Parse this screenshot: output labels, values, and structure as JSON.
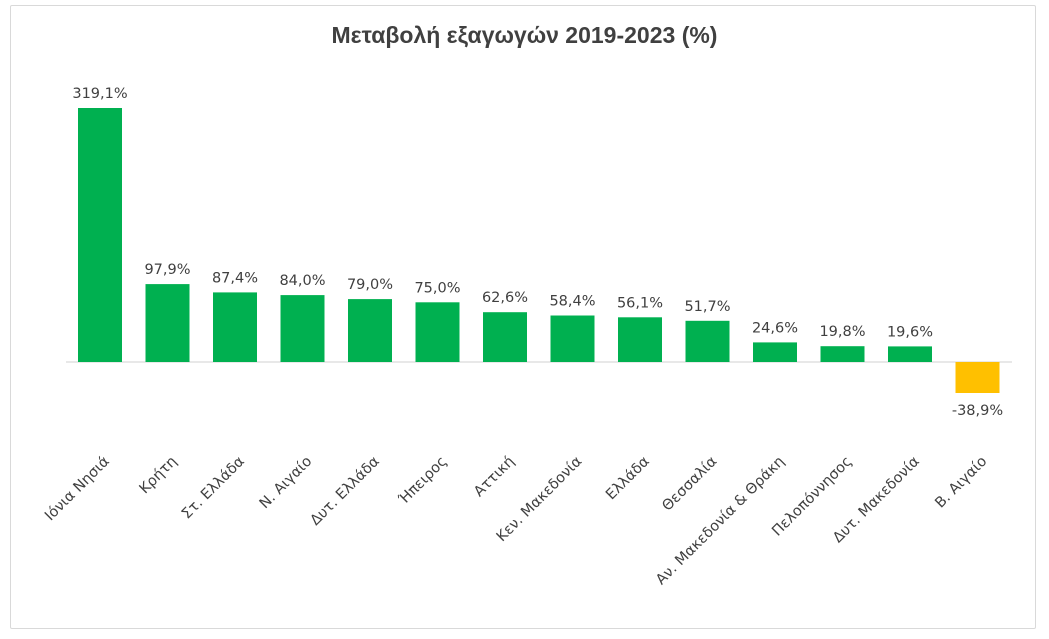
{
  "chart_data": {
    "type": "bar",
    "title": "Μεταβολή εξαγωγών 2019-2023 (%)",
    "categories": [
      "Ιόνια Νησιά",
      "Κρήτη",
      "Στ. Ελλάδα",
      "Ν. Αιγαίο",
      "Δυτ. Ελλάδα",
      "Ήπειρος",
      "Αττική",
      "Κεν. Μακεδονία",
      "Ελλάδα",
      "Θεσσαλία",
      "Αν. Μακεδονία & Θράκη",
      "Πελοπόννησος",
      "Δυτ. Μακεδονία",
      "Β. Αιγαίο"
    ],
    "values": [
      319.1,
      97.9,
      87.4,
      84.0,
      79.0,
      75.0,
      62.6,
      58.4,
      56.1,
      51.7,
      24.6,
      19.8,
      19.6,
      -38.9
    ],
    "value_labels": [
      "319,1%",
      "97,9%",
      "87,4%",
      "84,0%",
      "79,0%",
      "75,0%",
      "62,6%",
      "58,4%",
      "56,1%",
      "51,7%",
      "24,6%",
      "19,8%",
      "19,6%",
      "-38,9%"
    ],
    "colors": {
      "positive": "#00b050",
      "negative": "#ffc000",
      "axis": "#d9d9d9",
      "text": "#404040"
    },
    "ylim": [
      -55,
      330
    ],
    "grid": false,
    "legend": "none"
  }
}
